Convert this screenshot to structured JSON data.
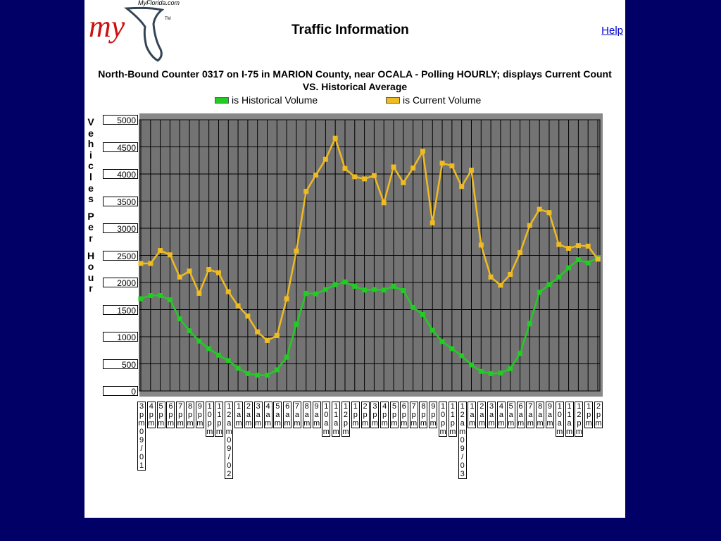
{
  "header": {
    "logo_text": "my",
    "logo_site": "MyFlorida.com",
    "title": "Traffic Information",
    "help_label": "Help"
  },
  "chart_data": {
    "type": "line",
    "title": "North-Bound Counter 0317 on I-75 in MARION County, near OCALA - Polling HOURLY; displays Current Count VS. Historical Average",
    "ylabel": "Vehicles Per Hour",
    "ylim": [
      0,
      5000
    ],
    "yticks": [
      0,
      500,
      1000,
      1500,
      2000,
      2500,
      3000,
      3500,
      4000,
      4500,
      5000
    ],
    "legend_position": "top",
    "grid": true,
    "x": [
      "3pm09/01",
      "4pm",
      "5pm",
      "6pm",
      "7pm",
      "8pm",
      "9pm",
      "10pm",
      "11pm",
      "12am09/02",
      "1am",
      "2am",
      "3am",
      "4am",
      "5am",
      "6am",
      "7am",
      "8am",
      "9am",
      "10am",
      "11am",
      "12pm",
      "1pm",
      "2pm",
      "3pm",
      "4pm",
      "5pm",
      "6pm",
      "7pm",
      "8pm",
      "9pm",
      "10pm",
      "11pm",
      "12am09/03",
      "1am",
      "2am",
      "3am",
      "4am",
      "5am",
      "6am",
      "7am",
      "8am",
      "9am",
      "10am",
      "11am",
      "12pm",
      "1pm",
      "2pm"
    ],
    "series": [
      {
        "name": "is Historical Volume",
        "color": "#22cc22",
        "values": [
          1700,
          1760,
          1760,
          1680,
          1330,
          1110,
          920,
          780,
          660,
          560,
          420,
          320,
          290,
          290,
          390,
          620,
          1230,
          1800,
          1790,
          1870,
          1960,
          2010,
          1930,
          1860,
          1870,
          1860,
          1930,
          1850,
          1540,
          1410,
          1120,
          910,
          780,
          650,
          480,
          360,
          320,
          330,
          410,
          690,
          1240,
          1820,
          1960,
          2100,
          2270,
          2420,
          2360,
          2460
        ]
      },
      {
        "name": "is Current Volume",
        "color": "#eebb22",
        "values": [
          2350,
          2350,
          2590,
          2510,
          2100,
          2210,
          1800,
          2240,
          2180,
          1830,
          1570,
          1380,
          1090,
          930,
          1020,
          1700,
          2580,
          3680,
          3980,
          4270,
          4660,
          4100,
          3950,
          3910,
          3970,
          3470,
          4130,
          3840,
          4110,
          4420,
          3100,
          4200,
          4150,
          3770,
          4070,
          2690,
          2100,
          1950,
          2150,
          2550,
          3050,
          3350,
          3290,
          2700,
          2630,
          2680,
          2670,
          2430
        ]
      }
    ]
  }
}
